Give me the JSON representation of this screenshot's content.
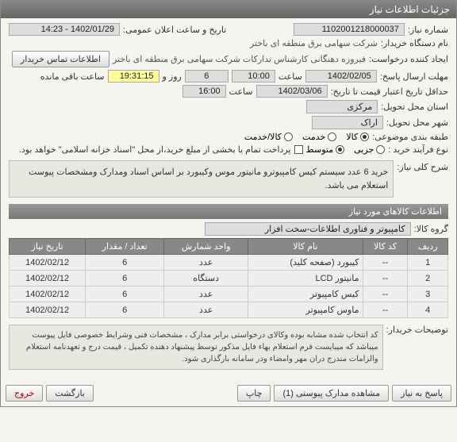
{
  "header": {
    "title": "جزئیات اطلاعات نیاز"
  },
  "form": {
    "req_no_lbl": "شماره نیاز:",
    "req_no": "1102001218000037",
    "announce_lbl": "تاریخ و ساعت اعلان عمومی:",
    "announce_val": "1402/01/29 - 14:23",
    "buyer_org_lbl": "نام دستگاه خریدار:",
    "buyer_org": "شرکت سهامی برق منطقه ای باختر",
    "creator_lbl": "ایجاد کننده درخواست:",
    "creator": "فیروزه دهنگانی کارشناس تدارکات شرکت سهامی برق منطقه ای باختر",
    "contact_btn": "اطلاعات تماس خریدار",
    "deadline_lbl": "مهلت ارسال پاسخ:",
    "deadline_date": "1402/02/05",
    "time_lbl": "ساعت",
    "deadline_time": "10:00",
    "days_left": "6",
    "days_lbl": "روز و",
    "time_left": "19:31:15",
    "remain_lbl": "ساعت باقی مانده",
    "valid_lbl": "حداقل تاریخ اعتبار قیمت تا تاریخ:",
    "valid_date": "1402/03/06",
    "valid_time": "16:00",
    "province_lbl": "استان محل تحویل:",
    "province": "مرکزی",
    "city_lbl": "شهر محل تحویل:",
    "city": "اراک",
    "cat_lbl": "طبقه بندی موضوعی:",
    "cat_goods": "کالا",
    "cat_service": "خدمت",
    "cat_both": "کالا/خدمت",
    "process_lbl": "نوع فرآیند خرید :",
    "proc_small": "جزیی",
    "proc_medium": "متوسط",
    "proc_note": "پرداخت تمام یا بخشی از مبلغ خرید،از محل \"اسناد خزانه اسلامی\" خواهد بود.",
    "summary_lbl": "شرح کلی نیاز:",
    "summary": "خرید 6 عدد سیستم کیس کامپیوترو مانیتور موس وکیبورد  بر اساس اسناد ومدارک ومشخصات پیوست استعلام می باشد.",
    "items_header": "اطلاعات کالاهای مورد نیاز",
    "group_lbl": "گروه کالا:",
    "group": "کامپیوتر و فناوری اطلاعات-سخت افزار",
    "buyer_note_lbl": "توضیحات خریدار:",
    "buyer_note": "کد انتخاب شده مشابه بوده وکالای درخواستی برابر مدارک ، مشخصات فنی وشرایط خصوصی فایل پیوست میباشد که میبایست فرم استعلام بهاء فایل مذکور توسط پیشنهاد دهنده تکمیل ، قیمت درج و تعهدنامه استعلام والزامات  مندرج دران مهر وامضاء ودر سامانه بارگذاری شود."
  },
  "table": {
    "cols": [
      "ردیف",
      "کد کالا",
      "نام کالا",
      "واحد شمارش",
      "تعداد / مقدار",
      "تاریخ نیاز"
    ],
    "rows": [
      [
        "1",
        "--",
        "کیبورد (صفحه کلید)",
        "عدد",
        "6",
        "1402/02/12"
      ],
      [
        "2",
        "--",
        "مانیتور LCD",
        "دستگاه",
        "6",
        "1402/02/12"
      ],
      [
        "3",
        "--",
        "کیس کامپیوتر",
        "عدد",
        "6",
        "1402/02/12"
      ],
      [
        "4",
        "--",
        "ماوس کامپیوتر",
        "عدد",
        "6",
        "1402/02/12"
      ]
    ]
  },
  "buttons": {
    "respond": "پاسخ به نیاز",
    "attachments": "مشاهده مدارک پیوستی (1)",
    "print": "چاپ",
    "back": "بازگشت",
    "exit": "خروج"
  }
}
